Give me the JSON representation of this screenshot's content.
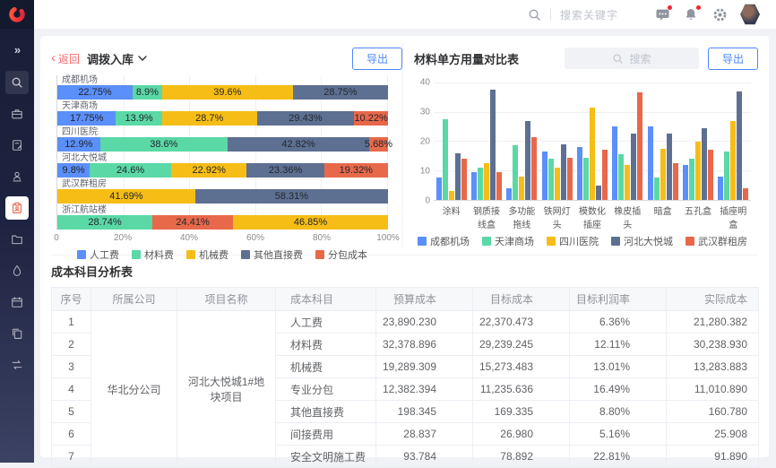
{
  "header": {
    "search_placeholder": "搜索关键字",
    "logo_color": "#F5222D",
    "icon_names": [
      "search-icon",
      "message-icon",
      "bell-icon",
      "gear-icon",
      "avatar"
    ],
    "badge_color": "#F5222D"
  },
  "sidebar": {
    "items": [
      {
        "icon": "collapse-icon",
        "active": false
      },
      {
        "icon": "search-icon",
        "active": false
      },
      {
        "icon": "briefcase-icon",
        "active": false
      },
      {
        "icon": "document-edit-icon",
        "active": false
      },
      {
        "icon": "user-stamp-icon",
        "active": false
      },
      {
        "icon": "clipboard-user-icon",
        "active": true
      },
      {
        "icon": "folder-icon",
        "active": false
      },
      {
        "icon": "drop-icon",
        "active": false
      },
      {
        "icon": "calendar-icon",
        "active": false
      },
      {
        "icon": "copy-icon",
        "active": false
      },
      {
        "icon": "transfer-icon",
        "active": false
      }
    ],
    "active_color": "#F0614A"
  },
  "left_panel": {
    "back_label": "返回",
    "export_label": "导出"
  },
  "right_panel": {
    "search_placeholder": "搜索",
    "export_label": "导出"
  },
  "palette": {
    "blue": "#5B8FF9",
    "green": "#5AD8A6",
    "yellow": "#F6BD16",
    "darkblue": "#5D7092",
    "red": "#E8684A"
  },
  "chart_data": [
    {
      "type": "bar",
      "variant": "horizontal-stacked-percent",
      "title": "调拨入库",
      "xlabel": "",
      "ylabel": "",
      "x_ticks": [
        "0",
        "20%",
        "40%",
        "60%",
        "80%",
        "100%"
      ],
      "xlim": [
        0,
        100
      ],
      "grid": true,
      "legend_position": "bottom",
      "legend": [
        "人工费",
        "材料费",
        "机械费",
        "其他直接费",
        "分包成本"
      ],
      "colors": {
        "人工费": "#5B8FF9",
        "材料费": "#5AD8A6",
        "机械费": "#F6BD16",
        "其他直接费": "#5D7092",
        "分包成本": "#E8684A"
      },
      "categories": [
        "成都机场",
        "天津商场",
        "四川医院",
        "河北大悦城",
        "武汉群租房",
        "浙江航站楼"
      ],
      "rows": [
        {
          "category": "成都机场",
          "segments": [
            {
              "name": "人工费",
              "value": 22.75
            },
            {
              "name": "材料费",
              "value": 8.9
            },
            {
              "name": "机械费",
              "value": 39.6
            },
            {
              "name": "其他直接费",
              "value": 28.75
            }
          ]
        },
        {
          "category": "天津商场",
          "segments": [
            {
              "name": "人工费",
              "value": 17.75
            },
            {
              "name": "材料费",
              "value": 13.9
            },
            {
              "name": "机械费",
              "value": 28.7
            },
            {
              "name": "其他直接费",
              "value": 29.43
            },
            {
              "name": "分包成本",
              "value": 10.22
            }
          ]
        },
        {
          "category": "四川医院",
          "segments": [
            {
              "name": "人工费",
              "value": 12.9
            },
            {
              "name": "材料费",
              "value": 38.6
            },
            {
              "name": "其他直接费",
              "value": 42.82
            },
            {
              "name": "分包成本",
              "value": 5.68
            }
          ]
        },
        {
          "category": "河北大悦城",
          "segments": [
            {
              "name": "人工费",
              "value": 9.8
            },
            {
              "name": "材料费",
              "value": 24.6
            },
            {
              "name": "机械费",
              "value": 22.92
            },
            {
              "name": "其他直接费",
              "value": 23.36
            },
            {
              "name": "分包成本",
              "value": 19.32
            }
          ]
        },
        {
          "category": "武汉群租房",
          "segments": [
            {
              "name": "机械费",
              "value": 41.69
            },
            {
              "name": "其他直接费",
              "value": 58.31
            }
          ]
        },
        {
          "category": "浙江航站楼",
          "segments": [
            {
              "name": "材料费",
              "value": 28.74
            },
            {
              "name": "分包成本",
              "value": 24.41
            },
            {
              "name": "机械费",
              "value": 46.85
            }
          ]
        }
      ]
    },
    {
      "type": "bar",
      "variant": "grouped-vertical",
      "title": "材料单方用量对比表",
      "xlabel": "",
      "ylabel": "",
      "y_ticks": [
        0,
        10,
        20,
        30,
        40
      ],
      "ylim": [
        0,
        40
      ],
      "grid": true,
      "legend_position": "bottom",
      "categories": [
        "涂料",
        "钢质接线盒",
        "多功能拖线",
        "铁网灯头",
        "模数化插座",
        "橡皮插头",
        "暗盒",
        "五孔盒",
        "插座明盒"
      ],
      "series": [
        {
          "name": "成都机场",
          "color": "#5B8FF9",
          "values": [
            7.5,
            9.5,
            4,
            16.5,
            18,
            25,
            25,
            12,
            8
          ]
        },
        {
          "name": "天津商场",
          "color": "#5AD8A6",
          "values": [
            27.5,
            11,
            18.5,
            14,
            14.5,
            15.5,
            7.5,
            14,
            16.5
          ]
        },
        {
          "name": "四川医院",
          "color": "#F6BD16",
          "values": [
            3,
            12.5,
            8,
            11,
            31.5,
            12,
            17.5,
            20,
            27
          ]
        },
        {
          "name": "河北大悦城",
          "color": "#5D7092",
          "values": [
            16,
            37.5,
            27,
            19,
            5,
            22.5,
            22.5,
            24.5,
            37
          ]
        },
        {
          "name": "武汉群租房",
          "color": "#E8684A",
          "values": [
            14,
            9.5,
            21.5,
            14.5,
            17,
            36.5,
            12.5,
            17,
            4
          ]
        }
      ]
    }
  ],
  "table": {
    "title": "成本科目分析表",
    "columns": [
      "序号",
      "所属公司",
      "项目名称",
      "成本科目",
      "预算成本",
      "目标成本",
      "目标利润率",
      "实际成本"
    ],
    "company": "华北分公司",
    "project": "河北大悦城1#地块项目",
    "rows": [
      {
        "no": "1",
        "subject": "人工费",
        "budget": "23,890.230",
        "target": "22,370.473",
        "margin": "6.36%",
        "actual": "21,280.382"
      },
      {
        "no": "2",
        "subject": "材料费",
        "budget": "32,378.896",
        "target": "29,239.245",
        "margin": "12.11%",
        "actual": "30,238.930"
      },
      {
        "no": "3",
        "subject": "机械费",
        "budget": "19,289.309",
        "target": "15,273.483",
        "margin": "13.01%",
        "actual": "13,283.883"
      },
      {
        "no": "4",
        "subject": "专业分包",
        "budget": "12,382.394",
        "target": "11,235.636",
        "margin": "16.49%",
        "actual": "11,010.890"
      },
      {
        "no": "5",
        "subject": "其他直接费",
        "budget": "198.345",
        "target": "169.335",
        "margin": "8.80%",
        "actual": "160.780"
      },
      {
        "no": "6",
        "subject": "间接费用",
        "budget": "28.837",
        "target": "26.980",
        "margin": "5.16%",
        "actual": "25.908"
      },
      {
        "no": "7",
        "subject": "安全文明施工费",
        "budget": "93.784",
        "target": "78.892",
        "margin": "22.81%",
        "actual": "91.890"
      }
    ]
  }
}
